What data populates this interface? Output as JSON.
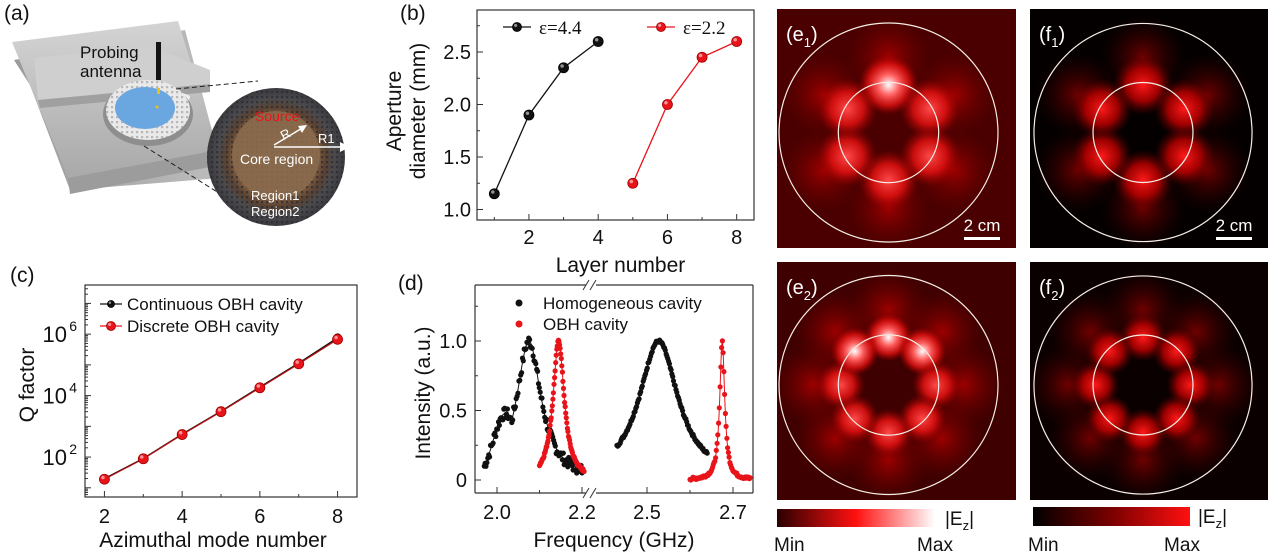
{
  "figure": {
    "panel_a": {
      "label": "(a)",
      "probe_label_line1": "Probing",
      "probe_label_line2": "antenna",
      "source_label": "Source",
      "r_label": "R",
      "r1_label": "R1",
      "core_label": "Core region",
      "region1_label": "Region1",
      "region2_label": "Region2"
    },
    "maps": {
      "e1": {
        "label": "(e",
        "sub": "1",
        "close": ")",
        "scalebar": "2 cm"
      },
      "f1": {
        "label": "(f",
        "sub": "1",
        "close": ")",
        "scalebar": "2 cm"
      },
      "e2": {
        "label": "(e",
        "sub": "2",
        "close": ")"
      },
      "f2": {
        "label": "(f",
        "sub": "2",
        "close": ")"
      },
      "colorbar_e": {
        "quantity": "|E",
        "sub": "z",
        "close": "|",
        "min": "Min",
        "max": "Max"
      },
      "colorbar_f": {
        "quantity": "|E",
        "sub": "z",
        "close": "|",
        "min": "Min",
        "max": "Max"
      }
    }
  },
  "colors": {
    "black_series": "#111111",
    "red_series": "#e8141a",
    "map_dark_e": "#3a0000",
    "map_dark_f": "#050000"
  },
  "chart_data": [
    {
      "panel": "(b)",
      "type": "line",
      "title": "",
      "xlabel": "Layer number",
      "ylabel_line1": "Aperture",
      "ylabel_line2": "diameter (mm)",
      "xlim": [
        0.5,
        8.5
      ],
      "ylim": [
        0.9,
        2.9
      ],
      "xticks": [
        2,
        4,
        6,
        8
      ],
      "yticks": [
        1.0,
        1.5,
        2.0,
        2.5
      ],
      "ytick_labels": [
        "1.0",
        "1.5",
        "2.0",
        "2.5"
      ],
      "legend_position": "top",
      "series": [
        {
          "name": "ε=4.4",
          "color": "#111111",
          "x": [
            1,
            2,
            3,
            4
          ],
          "y": [
            1.15,
            1.9,
            2.35,
            2.6
          ]
        },
        {
          "name": "ε=2.2",
          "color": "#e8141a",
          "x": [
            5,
            6,
            7,
            8
          ],
          "y": [
            1.25,
            2.0,
            2.45,
            2.6
          ]
        }
      ]
    },
    {
      "panel": "(c)",
      "type": "line",
      "yscale": "log",
      "xlabel": "Azimuthal mode number",
      "ylabel": "Q factor",
      "xlim": [
        1.5,
        8.5
      ],
      "ylim_log10": [
        0.7,
        7.6
      ],
      "xticks": [
        2,
        4,
        6,
        8
      ],
      "yticks_log10": [
        2,
        4,
        6
      ],
      "ytick_labels": [
        "10",
        "10",
        "10"
      ],
      "ytick_exponents": [
        "2",
        "4",
        "6"
      ],
      "legend_position": "top-left",
      "series": [
        {
          "name": "Continuous OBH cavity",
          "color": "#111111",
          "x": [
            2,
            3,
            4,
            5,
            6,
            7,
            8
          ],
          "y": [
            20,
            90,
            560,
            3100,
            19000,
            115000,
            760000
          ]
        },
        {
          "name": "Discrete OBH cavity",
          "color": "#e8141a",
          "x": [
            2,
            3,
            4,
            5,
            6,
            7,
            8
          ],
          "y": [
            19,
            88,
            540,
            3000,
            18000,
            108000,
            680000
          ]
        }
      ]
    },
    {
      "panel": "(d)",
      "type": "scatter",
      "xlabel": "Frequency (GHz)",
      "ylabel": "Intensity (a.u.)",
      "broken_x_axis": true,
      "segments": [
        {
          "xlim": [
            1.965,
            2.215
          ]
        },
        {
          "xlim": [
            2.42,
            2.75
          ]
        }
      ],
      "xticks": [
        2.0,
        2.2,
        2.5,
        2.7
      ],
      "xtick_labels": [
        "2.0",
        "2.2",
        "2.5",
        "2.7"
      ],
      "ylim": [
        -0.1,
        1.35
      ],
      "yticks": [
        0,
        0.5,
        1.0
      ],
      "ytick_labels": [
        "0",
        "0.5",
        "1.0"
      ],
      "legend_position": "top",
      "series": [
        {
          "name": "Homogeneous cavity",
          "color": "#111111",
          "peaks": [
            {
              "center": 2.075,
              "width": 0.035,
              "range": [
                1.97,
                2.2
              ]
            },
            {
              "center": 2.527,
              "width": 0.055,
              "range": [
                2.43,
                2.64
              ]
            }
          ]
        },
        {
          "name": "OBH cavity",
          "color": "#e8141a",
          "peaks": [
            {
              "center": 2.145,
              "width": 0.016,
              "range": [
                2.1,
                2.205
              ]
            },
            {
              "center": 2.675,
              "width": 0.007,
              "range": [
                2.6,
                2.74
              ]
            }
          ]
        }
      ]
    }
  ]
}
